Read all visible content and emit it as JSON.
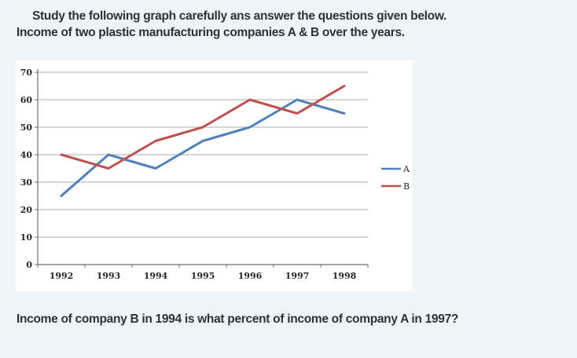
{
  "page": {
    "background": "#edf5f9",
    "text_color": "#2a333c",
    "heading_line1": "Study the following graph carefully ans answer the questions given below.",
    "heading_line2": "Income of two plastic manufacturing companies A & B over the years.",
    "question": "Income of company B in 1994 is what percent of income of company A in 1997?"
  },
  "chart_data": {
    "type": "line",
    "title": "",
    "xlabel": "",
    "ylabel": "",
    "categories": [
      "1992",
      "1993",
      "1994",
      "1995",
      "1996",
      "1997",
      "1998"
    ],
    "series": [
      {
        "name": "A",
        "color": "#4F81BD",
        "values": [
          25,
          40,
          35,
          45,
          50,
          60,
          55
        ]
      },
      {
        "name": "B",
        "color": "#C0504D",
        "values": [
          40,
          35,
          45,
          50,
          60,
          55,
          65
        ]
      }
    ],
    "ylim": [
      0,
      70
    ],
    "ytick_step": 10,
    "grid": true,
    "legend_position": "right",
    "panel_background": "#ffffff",
    "grid_color": "#ababab",
    "axis_color": "#6f6f6f",
    "label_color": "#262626"
  }
}
